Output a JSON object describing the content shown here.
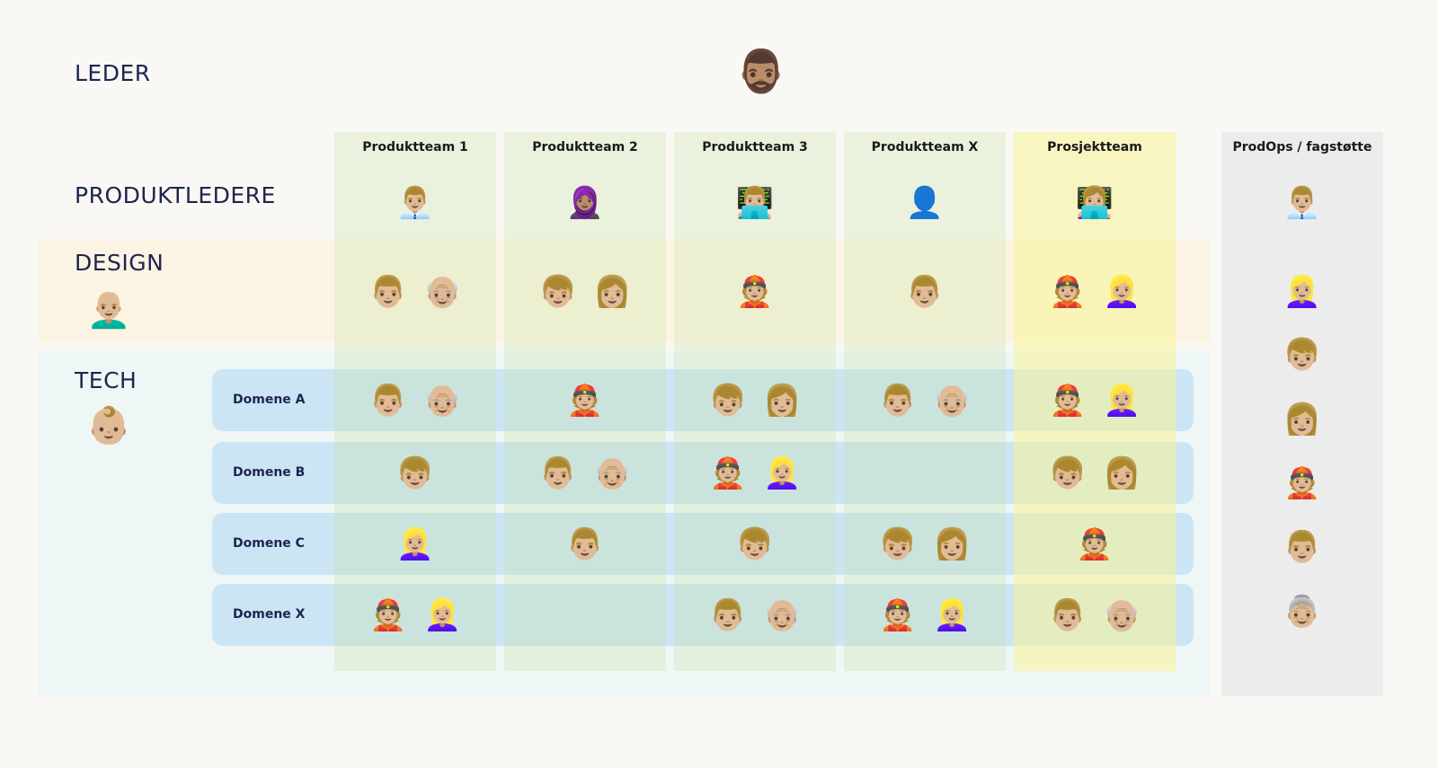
{
  "sections": {
    "leader": "LEDER",
    "product_leaders": "PRODUKTLEDERE",
    "design": "DESIGN",
    "tech": "TECH"
  },
  "leader_icon": "🧔🏽‍♂️",
  "design_lead_icon": "👨🏼‍🦲",
  "tech_lead_icon": "👶🏼",
  "columns": [
    {
      "title": "Produktteam 1",
      "pm": "👨🏼‍💼",
      "design": [
        "👨🏼",
        "👴🏼"
      ]
    },
    {
      "title": "Produktteam 2",
      "pm": "🧕🏽",
      "design": [
        "👦🏼",
        "👩🏼"
      ]
    },
    {
      "title": "Produktteam 3",
      "pm": "👨🏼‍💻",
      "design": [
        "👲🏼"
      ]
    },
    {
      "title": "Produktteam X",
      "pm": "👤",
      "design": [
        "👨🏼"
      ]
    },
    {
      "title": "Prosjektteam",
      "pm": "👩🏼‍💻",
      "design": [
        "👲🏼",
        "👱🏼‍♀️"
      ]
    }
  ],
  "prodops": {
    "title": "ProdOps / fagstøtte",
    "pm": "👨🏼‍💼",
    "members": [
      "👱🏼‍♀️",
      "👦🏼",
      "👩🏼",
      "👲🏼",
      "👨🏼",
      "👵🏼"
    ]
  },
  "rows": [
    {
      "label": "Domene A",
      "cells": [
        [
          "👨🏼",
          "👴🏼"
        ],
        [
          "👲🏼"
        ],
        [
          "👦🏼",
          "👩🏼"
        ],
        [
          "👨🏼",
          "👴🏼"
        ],
        [
          "👲🏼",
          "👱🏼‍♀️"
        ]
      ]
    },
    {
      "label": "Domene B",
      "cells": [
        [
          "👦🏼"
        ],
        [
          "👨🏼",
          "👴🏼"
        ],
        [
          "👲🏼",
          "👱🏼‍♀️"
        ],
        [],
        [
          "👦🏼",
          "👩🏼"
        ]
      ]
    },
    {
      "label": "Domene C",
      "cells": [
        [
          "👱🏼‍♀️"
        ],
        [
          "👨🏼"
        ],
        [
          "👦🏼"
        ],
        [
          "👦🏼",
          "👩🏼"
        ],
        [
          "👲🏼"
        ]
      ]
    },
    {
      "label": "Domene X",
      "cells": [
        [
          "👲🏼",
          "👱🏼‍♀️"
        ],
        [],
        [
          "👨🏼",
          "👴🏼"
        ],
        [
          "👲🏼",
          "👱🏼‍♀️"
        ],
        [
          "👨🏼",
          "👴🏼"
        ]
      ]
    }
  ],
  "colors": {
    "background": "#f9f8f4",
    "design_band": "#fbf4e2",
    "tech_band": "#eff6f6",
    "team_column": "#e3ecd4",
    "project_column": "#f5f2b6",
    "prodops_column": "#ececec",
    "domain_row": "#b4daf3"
  }
}
